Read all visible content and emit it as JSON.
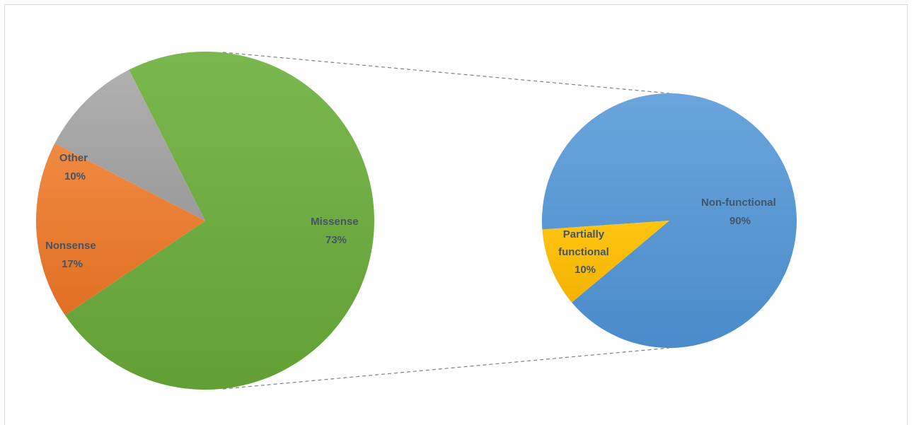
{
  "chart_data": [
    {
      "type": "pie",
      "slices": [
        {
          "label": "Missense",
          "value": 73,
          "value_label": "73%",
          "color": "#70ad47",
          "label_color": "#44546a"
        },
        {
          "label": "Nonsense",
          "value": 17,
          "value_label": "17%",
          "color": "#ed7d31",
          "label_color": "#44546a"
        },
        {
          "label": "Other",
          "value": 10,
          "value_label": "10%",
          "color": "#a5a5a5",
          "label_color": "#44546a"
        }
      ]
    },
    {
      "type": "pie",
      "slices": [
        {
          "label": "Non-functional",
          "value": 90,
          "value_label": "90%",
          "color": "#5b9bd5",
          "label_color": "#44546a"
        },
        {
          "label": "Partially functional",
          "value": 10,
          "value_label": "10%",
          "color": "#ffc000",
          "label_color": "#44546a"
        }
      ]
    }
  ],
  "connector_color": "#808080"
}
